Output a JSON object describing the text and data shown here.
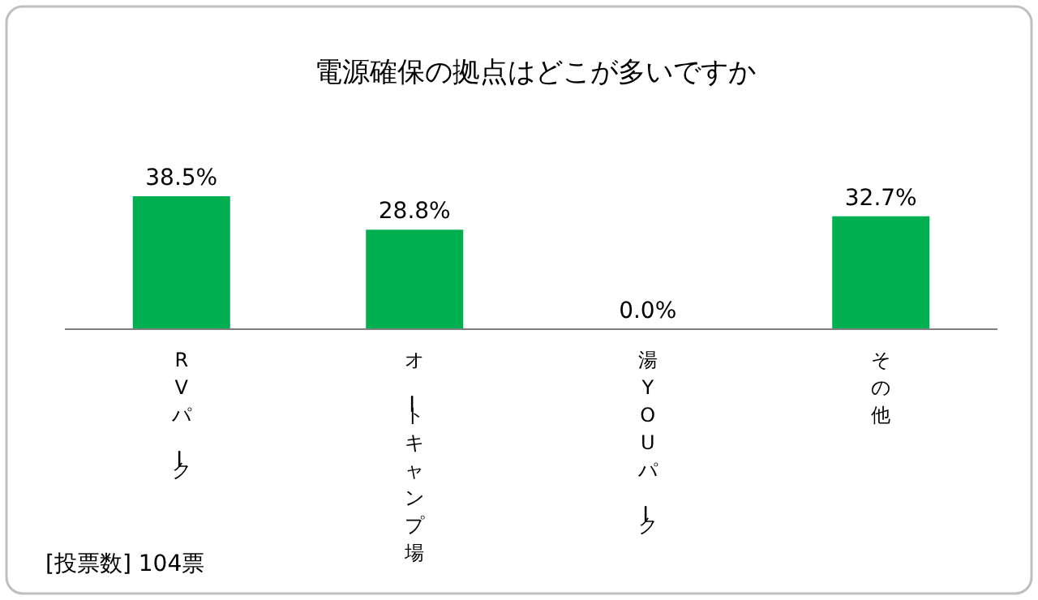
{
  "chart_data": {
    "type": "bar",
    "title": "電源確保の拠点はどこが多いですか",
    "categories": [
      "RVパーク",
      "オートキャンプ場",
      "湯YOUパーク",
      "その他"
    ],
    "values": [
      38.5,
      28.8,
      0.0,
      32.7
    ],
    "value_labels": [
      "38.5%",
      "28.8%",
      "0.0%",
      "32.7%"
    ],
    "color": "#00b050",
    "annotations": [
      "[投票数] 104票"
    ]
  }
}
